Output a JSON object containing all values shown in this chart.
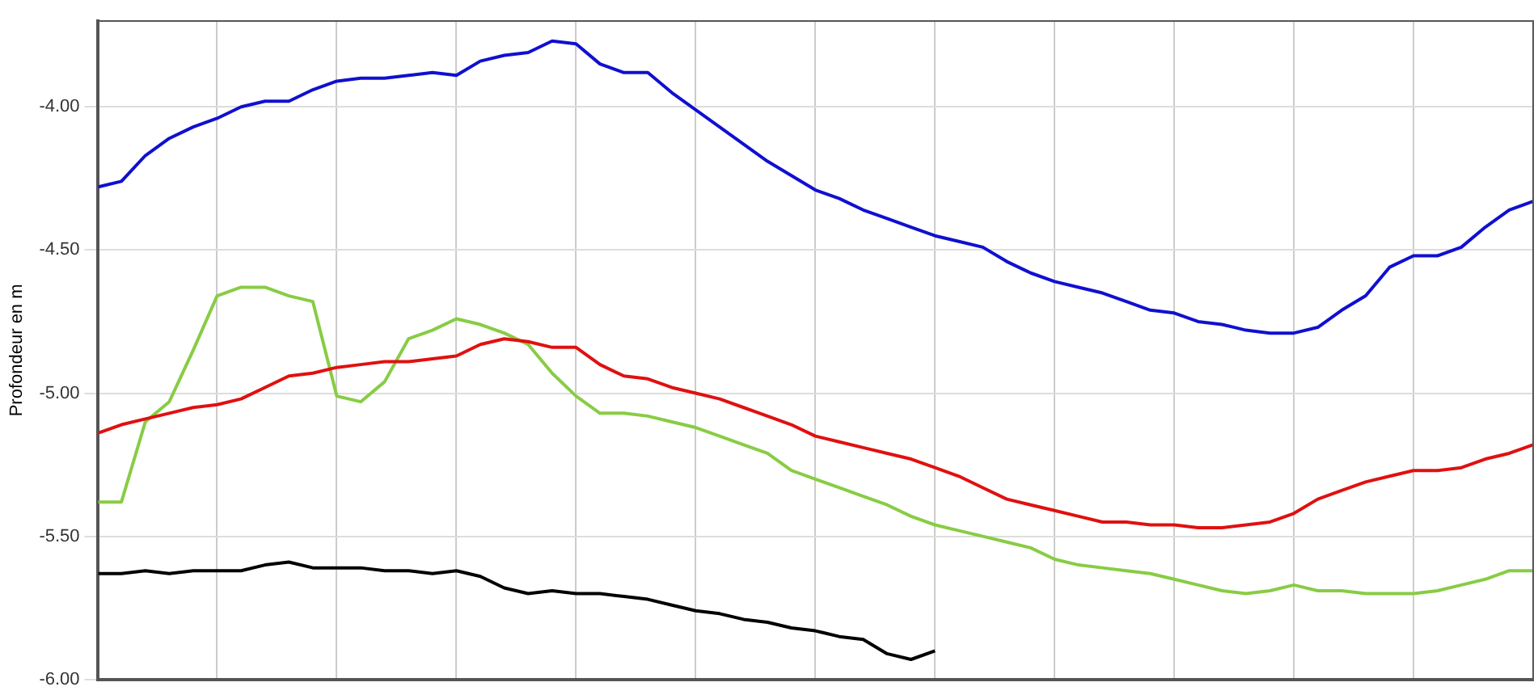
{
  "chart_data": {
    "type": "line",
    "ylabel": "Profondeur en m",
    "categories": [
      null,
      null,
      null,
      null,
      null,
      null,
      null,
      null,
      null,
      null,
      null,
      null,
      null,
      null,
      null,
      null,
      null,
      null,
      null,
      null,
      null,
      null,
      null,
      null,
      null,
      null,
      null,
      null,
      null,
      null,
      null,
      null,
      null,
      null,
      null,
      null,
      null,
      null,
      null,
      null,
      null,
      null,
      null,
      null,
      null,
      null,
      null,
      null,
      null,
      null,
      null,
      null,
      null,
      null,
      null,
      null,
      null,
      null,
      null,
      null,
      null
    ],
    "ylim": [
      -6,
      -3.7
    ],
    "yticks": [
      {
        "value": -6,
        "label": "-6.00"
      },
      {
        "value": -5.5,
        "label": "-5.50"
      },
      {
        "value": -5,
        "label": "-5.00"
      },
      {
        "value": -4.5,
        "label": "-4.50"
      },
      {
        "value": -4,
        "label": "-4.00"
      }
    ],
    "tick_labels": "y",
    "grid": true,
    "legend": false,
    "marker": "none",
    "line_style": "solid",
    "series": [
      {
        "color": "#1010d0",
        "values": [
          -4.28,
          -4.26,
          -4.17,
          -4.11,
          -4.07,
          -4.04,
          -4.0,
          -3.98,
          -3.98,
          -3.94,
          -3.91,
          -3.9,
          -3.9,
          -3.89,
          -3.88,
          -3.89,
          -3.84,
          -3.82,
          -3.81,
          -3.77,
          -3.78,
          -3.85,
          -3.88,
          -3.88,
          -3.95,
          -4.01,
          -4.07,
          -4.13,
          -4.19,
          -4.24,
          -4.29,
          -4.32,
          -4.36,
          -4.39,
          -4.42,
          -4.45,
          -4.47,
          -4.49,
          -4.54,
          -4.58,
          -4.61,
          -4.63,
          -4.65,
          -4.68,
          -4.71,
          -4.72,
          -4.75,
          -4.76,
          -4.78,
          -4.79,
          -4.79,
          -4.77,
          -4.71,
          -4.66,
          -4.56,
          -4.52,
          -4.52,
          -4.49,
          -4.42,
          -4.36,
          -4.33
        ]
      },
      {
        "color": "#e01010",
        "values": [
          -5.14,
          -5.11,
          -5.09,
          -5.07,
          -5.05,
          -5.04,
          -5.02,
          -4.98,
          -4.94,
          -4.93,
          -4.91,
          -4.9,
          -4.89,
          -4.89,
          -4.88,
          -4.87,
          -4.83,
          -4.81,
          -4.82,
          -4.84,
          -4.84,
          -4.9,
          -4.94,
          -4.95,
          -4.98,
          -5.0,
          -5.02,
          -5.05,
          -5.08,
          -5.11,
          -5.15,
          -5.17,
          -5.19,
          -5.21,
          -5.23,
          -5.26,
          -5.29,
          -5.33,
          -5.37,
          -5.39,
          -5.41,
          -5.43,
          -5.45,
          -5.45,
          -5.46,
          -5.46,
          -5.47,
          -5.47,
          -5.46,
          -5.45,
          -5.42,
          -5.37,
          -5.34,
          -5.31,
          -5.29,
          -5.27,
          -5.27,
          -5.26,
          -5.23,
          -5.21,
          -5.18
        ]
      },
      {
        "color": "#88cc44",
        "values": [
          -5.38,
          -5.38,
          -5.1,
          -5.03,
          -4.85,
          -4.66,
          -4.63,
          -4.63,
          -4.66,
          -4.68,
          -5.01,
          -5.03,
          -4.96,
          -4.81,
          -4.78,
          -4.74,
          -4.76,
          -4.79,
          -4.83,
          -4.93,
          -5.01,
          -5.07,
          -5.07,
          -5.08,
          -5.1,
          -5.12,
          -5.15,
          -5.18,
          -5.21,
          -5.27,
          -5.3,
          -5.33,
          -5.36,
          -5.39,
          -5.43,
          -5.46,
          -5.48,
          -5.5,
          -5.52,
          -5.54,
          -5.58,
          -5.6,
          -5.61,
          -5.62,
          -5.63,
          -5.65,
          -5.67,
          -5.69,
          -5.7,
          -5.69,
          -5.67,
          -5.69,
          -5.69,
          -5.7,
          -5.7,
          -5.7,
          -5.69,
          -5.67,
          -5.65,
          -5.62,
          -5.62
        ]
      },
      {
        "color": "#000000",
        "values": [
          -5.63,
          -5.63,
          -5.62,
          -5.63,
          -5.62,
          -5.62,
          -5.62,
          -5.6,
          -5.59,
          -5.61,
          -5.61,
          -5.61,
          -5.62,
          -5.62,
          -5.63,
          -5.62,
          -5.64,
          -5.68,
          -5.7,
          -5.69,
          -5.7,
          -5.7,
          -5.71,
          -5.72,
          -5.74,
          -5.76,
          -5.77,
          -5.79,
          -5.8,
          -5.82,
          -5.83,
          -5.85,
          -5.86,
          -5.91,
          -5.93,
          -5.9,
          null,
          null,
          null,
          null,
          null,
          null,
          null,
          null,
          null,
          null,
          null,
          null,
          null,
          null,
          null,
          null,
          null,
          null,
          null,
          null,
          null,
          null,
          null,
          null,
          null
        ]
      }
    ]
  }
}
